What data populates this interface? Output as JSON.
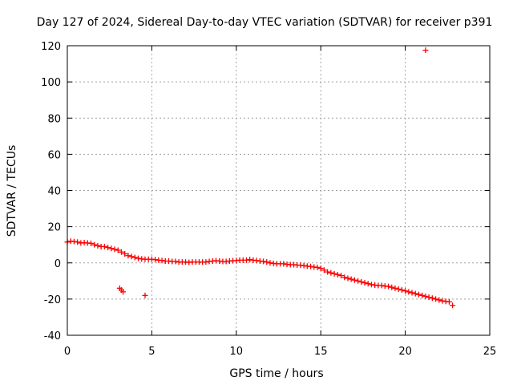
{
  "chart_data": {
    "type": "scatter",
    "title": "Day 127 of 2024, Sidereal Day-to-day VTEC variation (SDTVAR) for receiver p391",
    "xlabel": "GPS time / hours",
    "ylabel": "SDTVAR / TECUs",
    "xlim": [
      0,
      25
    ],
    "ylim": [
      -40,
      120
    ],
    "xticks": [
      0,
      5,
      10,
      15,
      20,
      25
    ],
    "yticks": [
      -40,
      -20,
      0,
      20,
      40,
      60,
      80,
      100,
      120
    ],
    "grid": true,
    "marker": "+",
    "marker_color": "#ff0000",
    "series": [
      {
        "name": "SDTVAR",
        "x": [
          0.0,
          0.2,
          0.4,
          0.6,
          0.8,
          1.0,
          1.2,
          1.4,
          1.6,
          1.8,
          2.0,
          2.2,
          2.4,
          2.6,
          2.8,
          3.0,
          3.2,
          3.4,
          3.6,
          3.8,
          4.0,
          4.2,
          4.4,
          4.6,
          4.8,
          5.0,
          5.2,
          5.4,
          5.6,
          5.8,
          6.0,
          6.2,
          6.4,
          6.6,
          6.8,
          7.0,
          7.2,
          7.4,
          7.6,
          7.8,
          8.0,
          8.2,
          8.4,
          8.6,
          8.8,
          9.0,
          9.2,
          9.4,
          9.6,
          9.8,
          10.0,
          10.2,
          10.4,
          10.6,
          10.8,
          11.0,
          11.2,
          11.4,
          11.6,
          11.8,
          12.0,
          12.2,
          12.4,
          12.6,
          12.8,
          13.0,
          13.2,
          13.4,
          13.6,
          13.8,
          14.0,
          14.2,
          14.4,
          14.6,
          14.8,
          15.0,
          15.2,
          15.4,
          15.6,
          15.8,
          16.0,
          16.2,
          16.4,
          16.6,
          16.8,
          17.0,
          17.2,
          17.4,
          17.6,
          17.8,
          18.0,
          18.2,
          18.4,
          18.6,
          18.8,
          19.0,
          19.2,
          19.4,
          19.6,
          19.8,
          20.0,
          20.2,
          20.4,
          20.6,
          20.8,
          21.0,
          21.2,
          21.4,
          21.6,
          21.8,
          22.0,
          22.2,
          22.4,
          22.6,
          22.8,
          3.1,
          3.2,
          3.3,
          4.6,
          21.2
        ],
        "y": [
          11.5,
          12.0,
          11.8,
          11.5,
          11.0,
          11.2,
          11.0,
          10.8,
          10.0,
          9.5,
          9.0,
          9.0,
          8.5,
          8.0,
          7.5,
          7.0,
          6.0,
          5.0,
          4.0,
          3.5,
          3.0,
          2.5,
          2.2,
          2.0,
          2.0,
          2.0,
          1.8,
          1.5,
          1.3,
          1.0,
          1.0,
          0.8,
          0.8,
          0.5,
          0.5,
          0.5,
          0.3,
          0.5,
          0.5,
          0.5,
          0.5,
          0.5,
          0.8,
          1.0,
          1.2,
          1.0,
          0.8,
          0.8,
          1.0,
          1.2,
          1.3,
          1.5,
          1.5,
          1.5,
          1.8,
          1.5,
          1.3,
          1.0,
          0.8,
          0.5,
          0.0,
          -0.3,
          -0.5,
          -0.5,
          -0.5,
          -0.8,
          -1.0,
          -1.0,
          -1.2,
          -1.3,
          -1.5,
          -1.8,
          -2.0,
          -2.3,
          -2.5,
          -3.0,
          -4.0,
          -5.0,
          -5.5,
          -6.0,
          -6.5,
          -7.0,
          -8.0,
          -8.5,
          -9.0,
          -9.5,
          -10.0,
          -10.5,
          -11.0,
          -11.5,
          -12.0,
          -12.3,
          -12.5,
          -12.5,
          -12.8,
          -13.0,
          -13.5,
          -14.0,
          -14.5,
          -15.0,
          -15.5,
          -16.0,
          -16.5,
          -17.0,
          -17.5,
          -18.0,
          -18.5,
          -19.0,
          -19.5,
          -20.0,
          -20.5,
          -21.0,
          -21.3,
          -21.5,
          -23.5,
          -14.0,
          -15.0,
          -16.0,
          -18.0,
          117.5
        ]
      }
    ]
  }
}
